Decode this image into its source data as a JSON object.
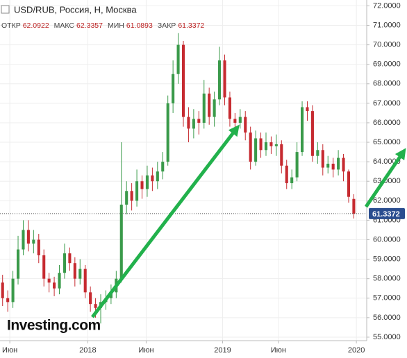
{
  "chart_data": {
    "type": "candlestick",
    "title": "USD/RUB, Россия, Н, Москва",
    "ohlc_labels": [
      "ОТКР",
      "МАКС",
      "МИН",
      "ЗАКР"
    ],
    "logo": "Investing.com",
    "up_color": "#3a9a4a",
    "down_color": "#c62a30",
    "price_color": "#2a4d8f",
    "xlim": [
      -0.5,
      70.5
    ],
    "xticks": [
      {
        "value": 1.4,
        "label": "Июн"
      },
      {
        "value": 16.5,
        "label": "2018"
      },
      {
        "value": 27.8,
        "label": "Июн"
      },
      {
        "value": 42.6,
        "label": "2019"
      },
      {
        "value": 53.4,
        "label": "Июн"
      },
      {
        "value": 68.5,
        "label": "2020"
      }
    ],
    "ylim": [
      54.82,
      72.3
    ],
    "yticks": [
      {
        "value": 55,
        "label": "55.0000"
      },
      {
        "value": 56,
        "label": "56.0000"
      },
      {
        "value": 57,
        "label": "57.0000"
      },
      {
        "value": 58,
        "label": "58.0000"
      },
      {
        "value": 59,
        "label": "59.0000"
      },
      {
        "value": 60,
        "label": "60.0000"
      },
      {
        "value": 61,
        "label": "61.0000"
      },
      {
        "value": 62,
        "label": "62.0000"
      },
      {
        "value": 63,
        "label": "63.0000"
      },
      {
        "value": 64,
        "label": "64.0000"
      },
      {
        "value": 65,
        "label": "65.0000"
      },
      {
        "value": 66,
        "label": "66.0000"
      },
      {
        "value": 67,
        "label": "67.0000"
      },
      {
        "value": 68,
        "label": "68.0000"
      },
      {
        "value": 69,
        "label": "69.0000"
      },
      {
        "value": 70,
        "label": "70.0000"
      },
      {
        "value": 71,
        "label": "71.0000"
      },
      {
        "value": 72,
        "label": "72.0000"
      }
    ],
    "series": [
      {
        "name": "USD/RUB",
        "open": [
          57.8,
          57.0,
          56.8,
          58.0,
          59.5,
          60.5,
          59.8,
          60.0,
          59.2,
          58.0,
          57.8,
          57.5,
          58.3,
          59.3,
          58.8,
          58.0,
          58.5,
          57.3,
          56.7,
          56.5,
          56.8,
          57.0,
          57.3,
          58.0,
          61.8,
          62.5,
          62.0,
          63.0,
          62.6,
          63.3,
          63.0,
          63.5,
          64.0,
          67.0,
          68.5,
          70.0,
          66.3,
          65.7,
          66.2,
          66.0,
          67.5,
          66.3,
          67.2,
          69.2,
          67.3,
          66.2,
          66.0,
          66.3,
          65.5,
          64.0,
          65.2,
          64.6,
          65.0,
          64.8,
          64.9,
          63.8,
          62.9,
          63.2,
          64.5,
          66.8,
          66.6,
          64.3,
          64.6,
          63.7,
          63.9,
          63.6,
          64.2,
          63.5,
          62.0922
        ],
        "high": [
          58.2,
          57.4,
          58.4,
          60.2,
          61.0,
          61.0,
          60.5,
          60.3,
          59.5,
          58.3,
          58.1,
          58.7,
          59.8,
          59.6,
          59.1,
          59.0,
          58.7,
          57.6,
          57.0,
          57.2,
          57.4,
          57.7,
          58.4,
          65.0,
          63.0,
          62.9,
          63.6,
          63.3,
          63.8,
          63.7,
          64.0,
          64.5,
          67.4,
          69.2,
          70.6,
          70.2,
          66.8,
          66.7,
          66.6,
          68.2,
          67.8,
          67.6,
          69.9,
          69.5,
          67.6,
          66.5,
          66.7,
          66.6,
          65.8,
          65.6,
          65.5,
          65.5,
          65.3,
          65.4,
          65.1,
          64.1,
          63.6,
          65.0,
          67.1,
          67.1,
          66.9,
          65.0,
          64.9,
          64.3,
          64.2,
          64.6,
          64.4,
          63.6,
          62.3357
        ],
        "low": [
          56.6,
          56.3,
          56.5,
          57.7,
          59.2,
          59.4,
          59.3,
          58.8,
          57.6,
          57.3,
          57.1,
          57.2,
          58.0,
          58.4,
          57.6,
          57.7,
          57.0,
          56.3,
          56.0,
          55.7,
          56.4,
          56.7,
          57.0,
          57.8,
          61.3,
          61.5,
          61.7,
          62.1,
          62.2,
          62.5,
          62.6,
          63.1,
          63.8,
          66.5,
          68.0,
          65.8,
          65.0,
          65.2,
          65.4,
          65.7,
          65.9,
          65.8,
          66.9,
          66.9,
          65.8,
          65.6,
          65.7,
          65.1,
          63.6,
          63.8,
          64.2,
          64.3,
          64.4,
          64.3,
          63.4,
          62.6,
          62.6,
          63.0,
          64.3,
          66.1,
          64.0,
          63.9,
          63.3,
          63.4,
          63.2,
          63.3,
          63.0,
          61.9,
          61.0893
        ],
        "close": [
          57.0,
          56.8,
          58.0,
          59.5,
          60.5,
          59.8,
          60.0,
          59.2,
          58.0,
          57.8,
          57.5,
          58.3,
          59.3,
          58.8,
          58.0,
          58.5,
          57.3,
          56.7,
          56.5,
          56.8,
          57.0,
          57.3,
          58.0,
          61.8,
          62.5,
          62.0,
          63.0,
          62.6,
          63.3,
          63.0,
          63.5,
          64.0,
          67.0,
          68.5,
          70.0,
          66.3,
          65.7,
          66.2,
          66.0,
          67.5,
          66.3,
          67.2,
          69.2,
          67.3,
          66.2,
          66.0,
          66.3,
          65.5,
          64.0,
          65.2,
          64.6,
          65.0,
          64.8,
          64.9,
          63.8,
          62.9,
          63.2,
          64.5,
          66.8,
          66.6,
          64.3,
          64.6,
          63.7,
          63.9,
          63.6,
          64.2,
          63.5,
          62.2,
          61.3372
        ]
      }
    ]
  }
}
